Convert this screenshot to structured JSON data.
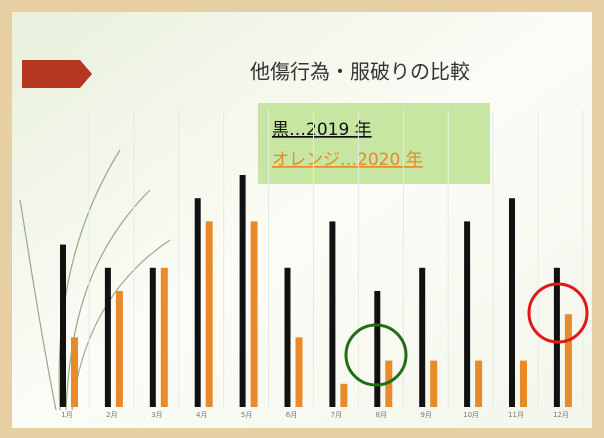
{
  "chart_data": {
    "type": "bar",
    "title": "他傷行為・服破りの比較",
    "annotations": [
      "黒…2019 年",
      "オレンジ…2020 年"
    ],
    "categories": [
      "1月",
      "2月",
      "3月",
      "4月",
      "5月",
      "6月",
      "7月",
      "8月",
      "9月",
      "10月",
      "11月",
      "12月"
    ],
    "series": [
      {
        "color": "#111111",
        "values": [
          7,
          6,
          6,
          9,
          10,
          6,
          8,
          5,
          6,
          8,
          9,
          6
        ]
      },
      {
        "color": "#e8892a",
        "values": [
          3,
          5,
          6,
          8,
          8,
          3,
          1,
          2,
          2,
          2,
          2,
          4
        ]
      }
    ]
  }
}
